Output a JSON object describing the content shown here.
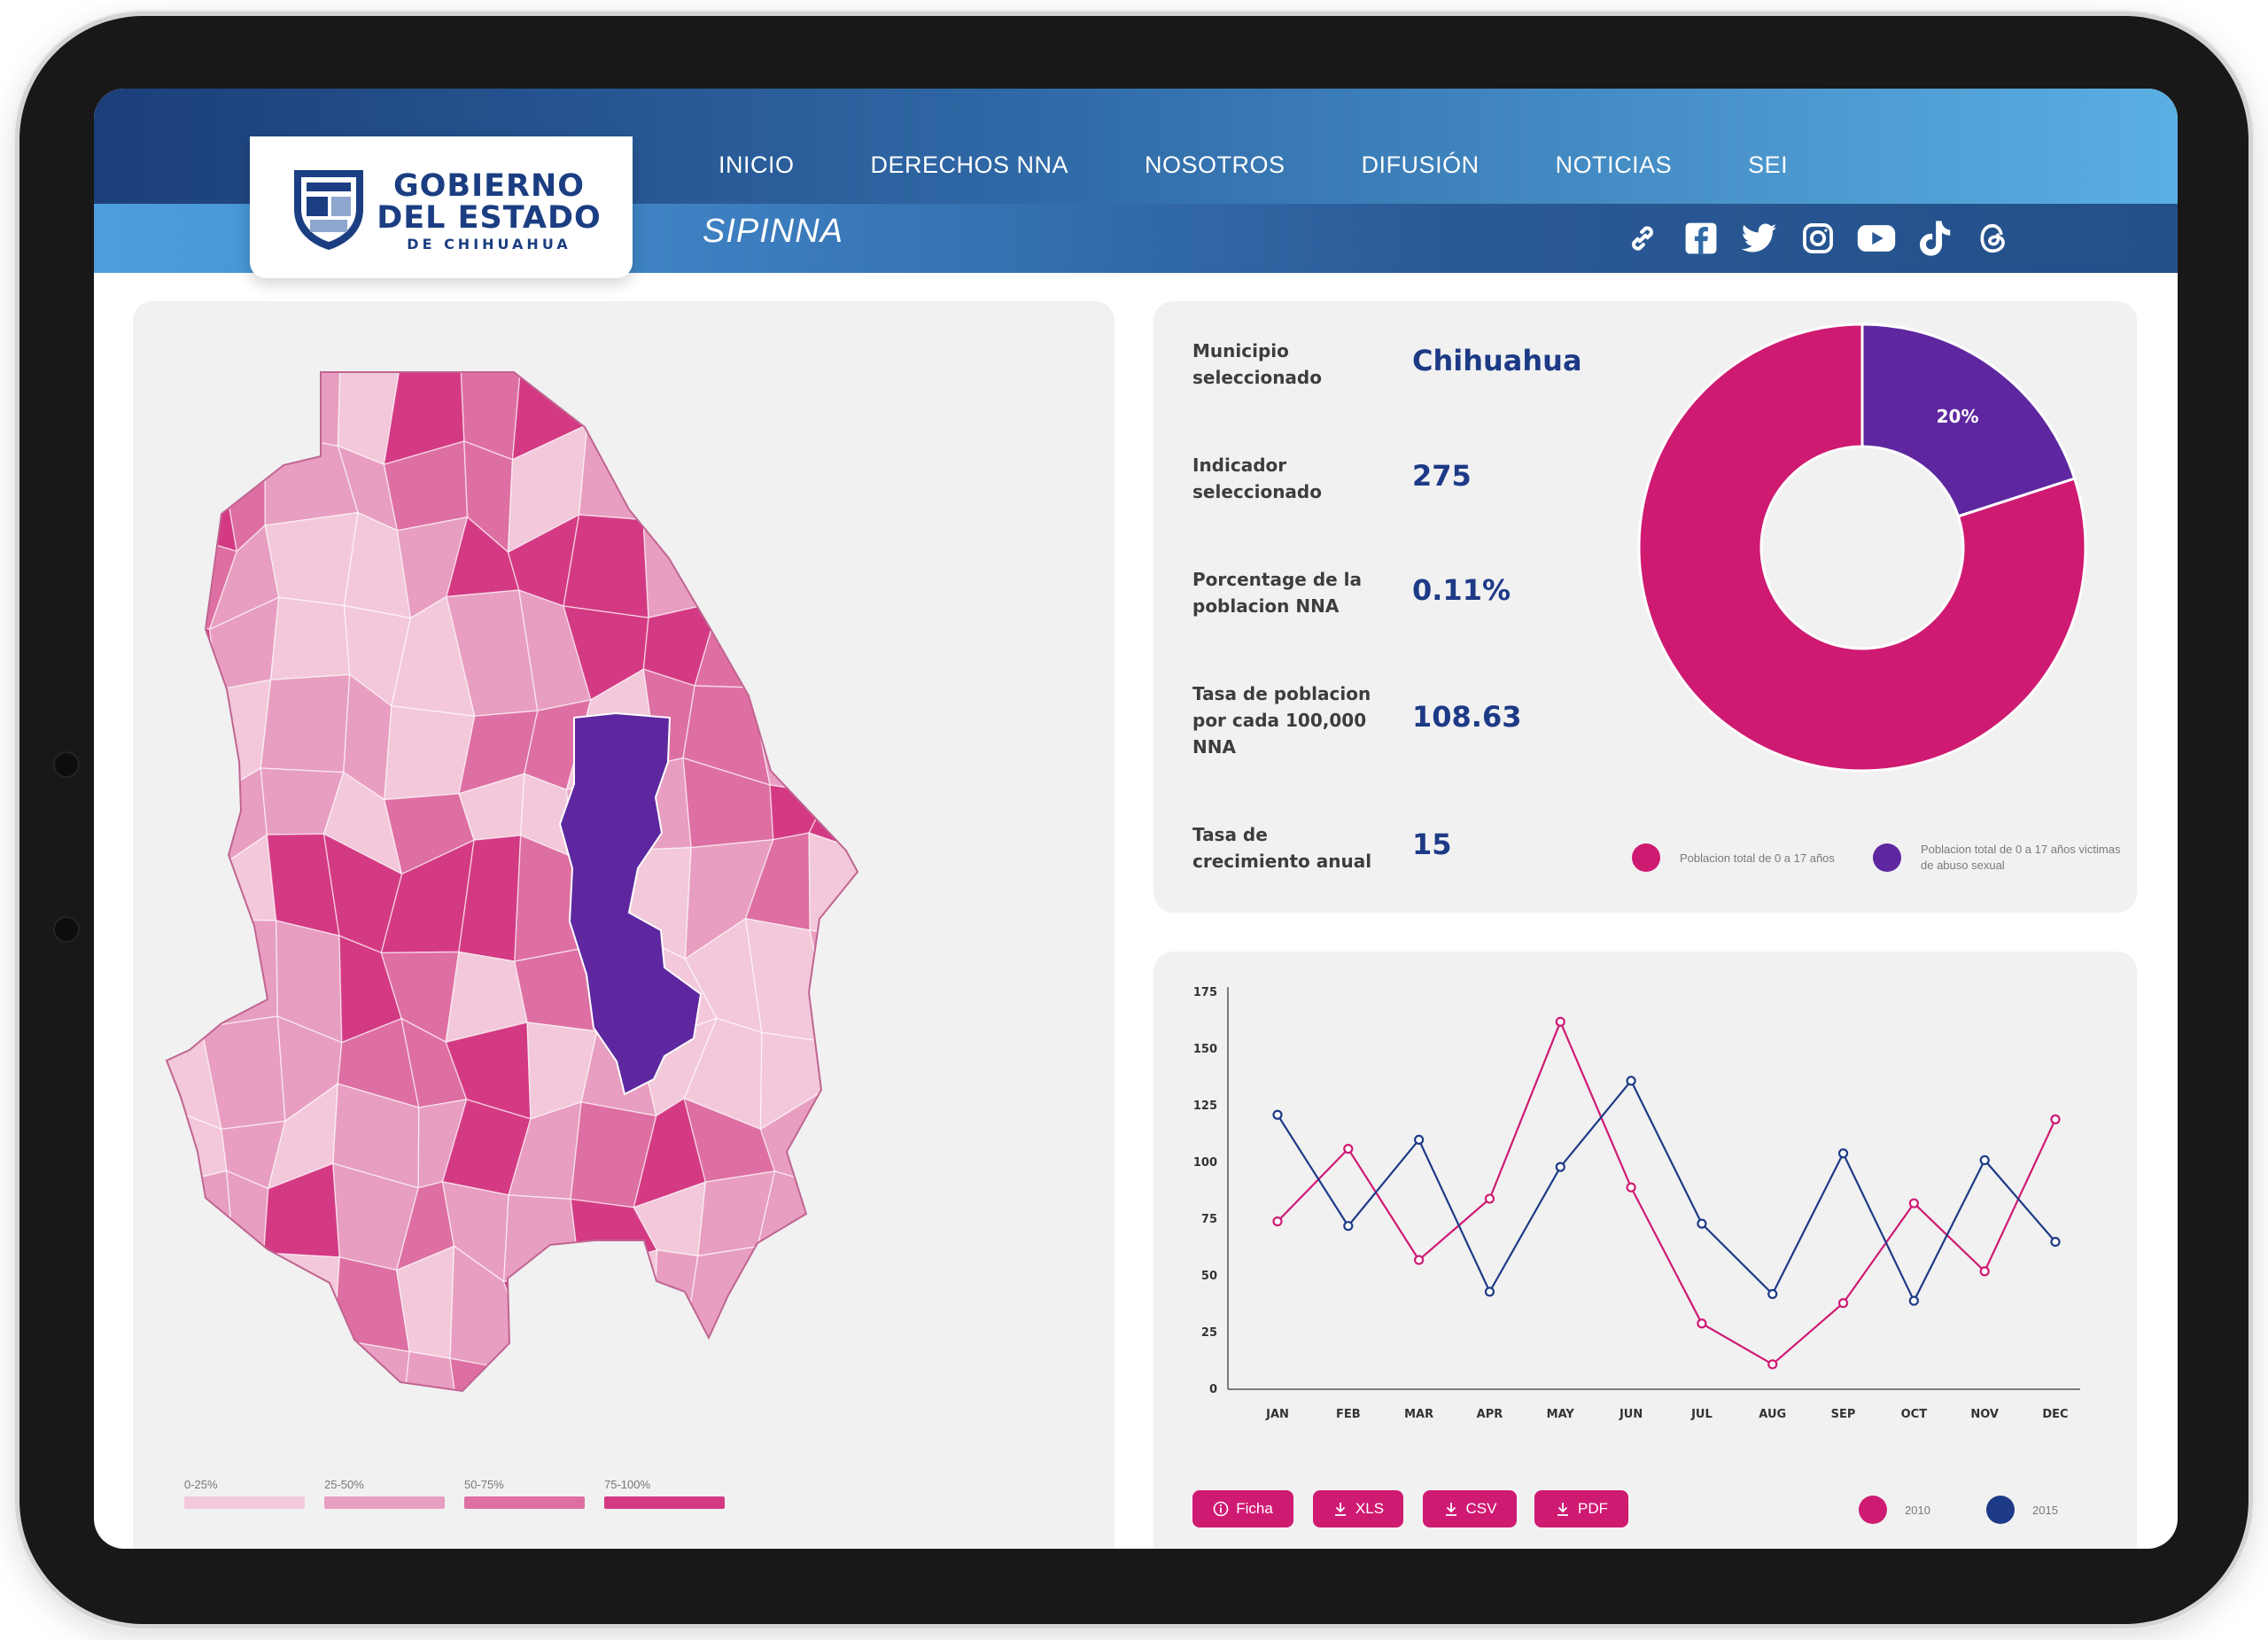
{
  "header": {
    "logo": {
      "line1": "GOBIERNO",
      "line2": "DEL ESTADO",
      "line3": "DE CHIHUAHUA"
    },
    "nav": [
      {
        "label": "INICIO"
      },
      {
        "label": "DERECHOS NNA"
      },
      {
        "label": "NOSOTROS"
      },
      {
        "label": "DIFUSIÓN"
      },
      {
        "label": "NOTICIAS"
      },
      {
        "label": "SEI"
      }
    ],
    "brand": "SIPINNA",
    "social": [
      "link-icon",
      "facebook-icon",
      "twitter-icon",
      "instagram-icon",
      "youtube-icon",
      "tiktok-icon",
      "threads-icon"
    ]
  },
  "colors": {
    "primary": "#cf1a72",
    "accent_purple": "#5e27a0",
    "navy": "#1d3a86",
    "map_scale": [
      "#f2c8da",
      "#e89ec0",
      "#de6fa3",
      "#d43a84"
    ]
  },
  "map": {
    "selected_region": "Chihuahua",
    "legend": [
      {
        "label": "0-25%",
        "color": "#f2c8da"
      },
      {
        "label": "25-50%",
        "color": "#e89ec0"
      },
      {
        "label": "50-75%",
        "color": "#de6fa3"
      },
      {
        "label": "75-100%",
        "color": "#d43a84"
      }
    ]
  },
  "info": {
    "rows": [
      {
        "label": "Municipio seleccionado",
        "value": "Chihuahua"
      },
      {
        "label": "Indicador seleccionado",
        "value": "275"
      },
      {
        "label": "Porcentage de la poblacion NNA",
        "value": "0.11%"
      },
      {
        "label": "Tasa de poblacion por cada 100,000 NNA",
        "value": "108.63"
      },
      {
        "label": "Tasa de crecimiento anual",
        "value": "15"
      }
    ]
  },
  "donut": {
    "label": "20%",
    "slices": [
      {
        "name": "Poblacion total de 0 a 17 años",
        "value": 80,
        "color": "#cf1a72"
      },
      {
        "name": "Poblacion total de 0 a 17 años victimas de abuso sexual",
        "value": 20,
        "color": "#5e27a0"
      }
    ],
    "legend": [
      {
        "label": "Poblacion total de 0 a 17 años",
        "color": "#cf1a72"
      },
      {
        "label": "Poblacion total de 0 a 17 años victimas de abuso sexual",
        "color": "#5e27a0"
      }
    ]
  },
  "chart_data": {
    "type": "line",
    "x": [
      "JAN",
      "FEB",
      "MAR",
      "APR",
      "MAY",
      "JUN",
      "JUL",
      "AUG",
      "SEP",
      "OCT",
      "NOV",
      "DEC"
    ],
    "ylim": [
      0,
      175
    ],
    "yticks": [
      0,
      25,
      50,
      75,
      100,
      125,
      150,
      175
    ],
    "grid": false,
    "legend_position": "bottom-right",
    "series": [
      {
        "name": "2010",
        "color": "#cf1a72",
        "values": [
          74,
          106,
          57,
          84,
          162,
          89,
          29,
          11,
          38,
          82,
          52,
          119
        ]
      },
      {
        "name": "2015",
        "color": "#1d3a86",
        "values": [
          121,
          72,
          110,
          43,
          98,
          136,
          73,
          42,
          104,
          39,
          101,
          65
        ]
      }
    ]
  },
  "downloads": [
    {
      "label": "Ficha",
      "icon": "info-icon"
    },
    {
      "label": "XLS",
      "icon": "download-icon"
    },
    {
      "label": "CSV",
      "icon": "download-icon"
    },
    {
      "label": "PDF",
      "icon": "download-icon"
    }
  ]
}
